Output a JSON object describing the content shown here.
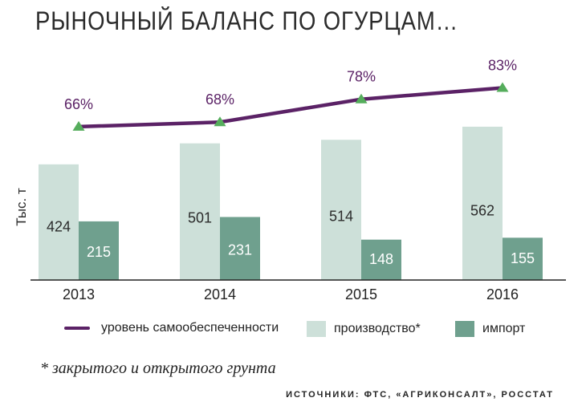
{
  "chart_data": {
    "type": "bar",
    "title": "РЫНОЧНЫЙ БАЛАНС ПО ОГУРЦАМ…",
    "ylabel": "Тыс. т",
    "categories": [
      "2013",
      "2014",
      "2015",
      "2016"
    ],
    "ylim": [
      0,
      600
    ],
    "series": [
      {
        "name": "производство*",
        "values": [
          424,
          501,
          514,
          562
        ],
        "color": "#cde0d9"
      },
      {
        "name": "импорт",
        "values": [
          215,
          231,
          148,
          155
        ],
        "color": "#6fa08e"
      }
    ],
    "line": {
      "name": "уровень самообеспеченности",
      "values": [
        66,
        68,
        78,
        83
      ],
      "labels": [
        "66%",
        "68%",
        "78%",
        "83%"
      ],
      "color": "#5b2266",
      "marker_color": "#55ad5c"
    },
    "grid": false,
    "legend_position": "bottom"
  },
  "footnote": "* закрытого и открытого грунта",
  "sources": "ИСТОЧНИКИ: ФТС, «АГРИКОНСАЛТ», РОССТАТ"
}
